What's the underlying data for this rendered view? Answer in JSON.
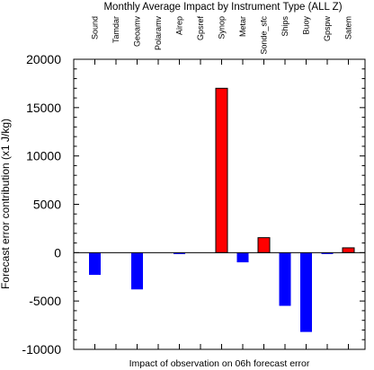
{
  "chart_data": {
    "type": "bar",
    "title": "Monthly Average Impact by Instrument Type (ALL Z)",
    "xlabel": "Impact of observation on 06h forecast error",
    "ylabel": "Forecast error contribution (x1 J/kg)",
    "categories": [
      "Sound",
      "Tamdar",
      "Geoamv",
      "Polaramv",
      "Airep",
      "Gpsref",
      "Synop",
      "Metar",
      "Sonde_sfc",
      "Ships",
      "Buoy",
      "Gpspw",
      "Satem"
    ],
    "values": [
      -2300,
      0,
      -3800,
      0,
      -150,
      0,
      17000,
      -1000,
      1550,
      -5500,
      -8200,
      -80,
      500
    ],
    "ylim": [
      -10000,
      20000
    ],
    "yticks": [
      -10000,
      -5000,
      0,
      5000,
      10000,
      15000,
      20000
    ],
    "ytick_labels": [
      "-10000",
      "-5000",
      "0",
      "5000",
      "10000",
      "15000",
      "20000"
    ],
    "colors": {
      "positive": "#ff0000",
      "negative": "#0000ff",
      "axis": "#000000"
    },
    "grid": false,
    "legend": "none",
    "category_label_position": "top, rotated vertical"
  }
}
